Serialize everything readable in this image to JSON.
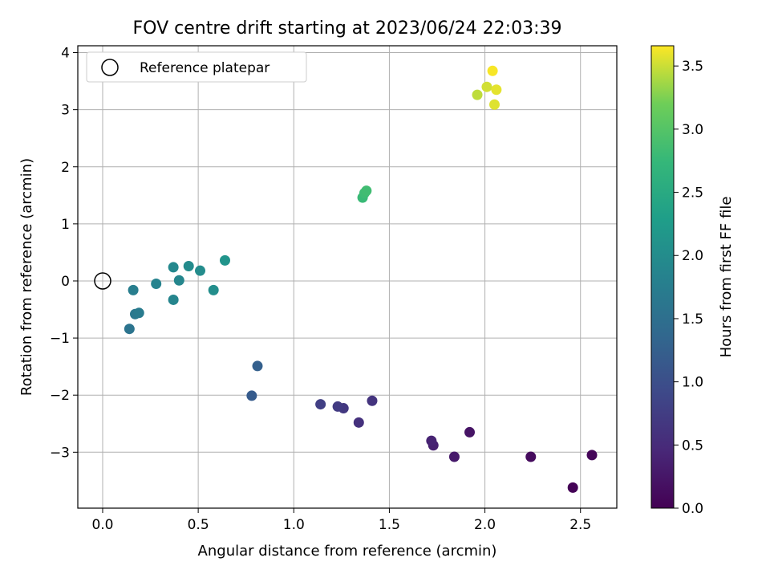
{
  "chart_data": {
    "type": "scatter",
    "title": "FOV centre drift starting at 2023/06/24 22:03:39",
    "xlabel": "Angular distance from reference (arcmin)",
    "ylabel": "Rotation from reference (arcmin)",
    "xlim": [
      -0.13,
      2.69
    ],
    "ylim": [
      -3.98,
      4.12
    ],
    "xticks": [
      0.0,
      0.5,
      1.0,
      1.5,
      2.0,
      2.5
    ],
    "xtick_labels": [
      "0.0",
      "0.5",
      "1.0",
      "1.5",
      "2.0",
      "2.5"
    ],
    "yticks": [
      -3,
      -2,
      -1,
      0,
      1,
      2,
      3,
      4
    ],
    "ytick_labels": [
      "−3",
      "−2",
      "−1",
      "0",
      "1",
      "2",
      "3",
      "4"
    ],
    "grid": true,
    "legend": {
      "placement": "upper left",
      "entries": [
        "Reference platepar"
      ]
    },
    "reference_point": {
      "x": 0.0,
      "y": 0.0,
      "label": "Reference platepar"
    },
    "colorbar": {
      "label": "Hours from first FF file",
      "colormap": "viridis",
      "range": [
        0.0,
        3.66
      ],
      "ticks": [
        0.0,
        0.5,
        1.0,
        1.5,
        2.0,
        2.5,
        3.0,
        3.5
      ],
      "tick_labels": [
        "0.0",
        "0.5",
        "1.0",
        "1.5",
        "2.0",
        "2.5",
        "3.0",
        "3.5"
      ]
    },
    "points": [
      {
        "x": 2.46,
        "y": -3.62,
        "hours": 0.02
      },
      {
        "x": 2.56,
        "y": -3.05,
        "hours": 0.06
      },
      {
        "x": 2.24,
        "y": -3.08,
        "hours": 0.12
      },
      {
        "x": 1.92,
        "y": -2.65,
        "hours": 0.22
      },
      {
        "x": 1.84,
        "y": -3.08,
        "hours": 0.28
      },
      {
        "x": 1.73,
        "y": -2.88,
        "hours": 0.36
      },
      {
        "x": 1.72,
        "y": -2.8,
        "hours": 0.4
      },
      {
        "x": 1.41,
        "y": -2.1,
        "hours": 0.62
      },
      {
        "x": 1.34,
        "y": -2.48,
        "hours": 0.58
      },
      {
        "x": 1.26,
        "y": -2.23,
        "hours": 0.68
      },
      {
        "x": 1.23,
        "y": -2.2,
        "hours": 0.72
      },
      {
        "x": 1.14,
        "y": -2.16,
        "hours": 0.78
      },
      {
        "x": 0.78,
        "y": -2.01,
        "hours": 1.18
      },
      {
        "x": 0.81,
        "y": -1.49,
        "hours": 1.26
      },
      {
        "x": 0.14,
        "y": -0.84,
        "hours": 1.58
      },
      {
        "x": 0.17,
        "y": -0.58,
        "hours": 1.66
      },
      {
        "x": 0.19,
        "y": -0.56,
        "hours": 1.7
      },
      {
        "x": 0.16,
        "y": -0.16,
        "hours": 1.76
      },
      {
        "x": 0.28,
        "y": -0.05,
        "hours": 1.84
      },
      {
        "x": 0.37,
        "y": -0.33,
        "hours": 1.88
      },
      {
        "x": 0.37,
        "y": 0.24,
        "hours": 1.93
      },
      {
        "x": 0.4,
        "y": 0.01,
        "hours": 1.9
      },
      {
        "x": 0.45,
        "y": 0.26,
        "hours": 1.97
      },
      {
        "x": 0.51,
        "y": 0.18,
        "hours": 1.99
      },
      {
        "x": 0.58,
        "y": -0.16,
        "hours": 2.03
      },
      {
        "x": 0.64,
        "y": 0.36,
        "hours": 2.13
      },
      {
        "x": 1.36,
        "y": 1.46,
        "hours": 2.78
      },
      {
        "x": 1.37,
        "y": 1.54,
        "hours": 2.82
      },
      {
        "x": 1.38,
        "y": 1.58,
        "hours": 2.84
      },
      {
        "x": 1.96,
        "y": 3.26,
        "hours": 3.46
      },
      {
        "x": 2.01,
        "y": 3.4,
        "hours": 3.52
      },
      {
        "x": 2.04,
        "y": 3.68,
        "hours": 3.64
      },
      {
        "x": 2.06,
        "y": 3.35,
        "hours": 3.58
      },
      {
        "x": 2.05,
        "y": 3.09,
        "hours": 3.56
      }
    ]
  }
}
